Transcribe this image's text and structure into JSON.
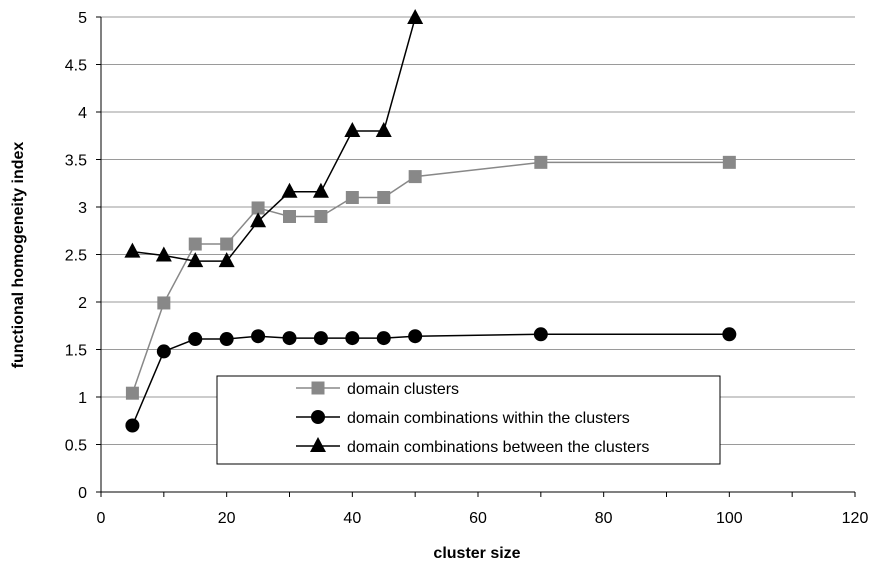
{
  "chart_data": {
    "type": "line",
    "title": "",
    "xlabel": "cluster size",
    "ylabel": "functional homogeneity index",
    "xlim": [
      0,
      120
    ],
    "ylim": [
      0,
      5
    ],
    "xticks": [
      0,
      20,
      40,
      60,
      80,
      100,
      120
    ],
    "yticks": [
      0,
      0.5,
      1,
      1.5,
      2,
      2.5,
      3,
      3.5,
      4,
      4.5,
      5
    ],
    "grid": "horizontal",
    "legend_position": "bottom-center",
    "series": [
      {
        "name": "domain clusters",
        "marker": "square",
        "color": "#888888",
        "x": [
          5,
          10,
          15,
          20,
          25,
          30,
          35,
          40,
          45,
          50,
          70,
          100
        ],
        "y": [
          1.04,
          1.99,
          2.61,
          2.61,
          2.99,
          2.9,
          2.9,
          3.1,
          3.1,
          3.32,
          3.47,
          3.47
        ]
      },
      {
        "name": "domain combinations within the clusters",
        "marker": "circle",
        "color": "#000000",
        "x": [
          5,
          10,
          15,
          20,
          25,
          30,
          35,
          40,
          45,
          50,
          70,
          100
        ],
        "y": [
          0.7,
          1.48,
          1.61,
          1.61,
          1.64,
          1.62,
          1.62,
          1.62,
          1.62,
          1.64,
          1.66,
          1.66
        ]
      },
      {
        "name": "domain combinations between the clusters",
        "marker": "triangle",
        "color": "#000000",
        "x": [
          5,
          10,
          15,
          20,
          25,
          30,
          35,
          40,
          45,
          50
        ],
        "y": [
          2.53,
          2.49,
          2.43,
          2.43,
          2.85,
          3.16,
          3.16,
          3.8,
          3.8,
          4.99
        ]
      }
    ]
  }
}
